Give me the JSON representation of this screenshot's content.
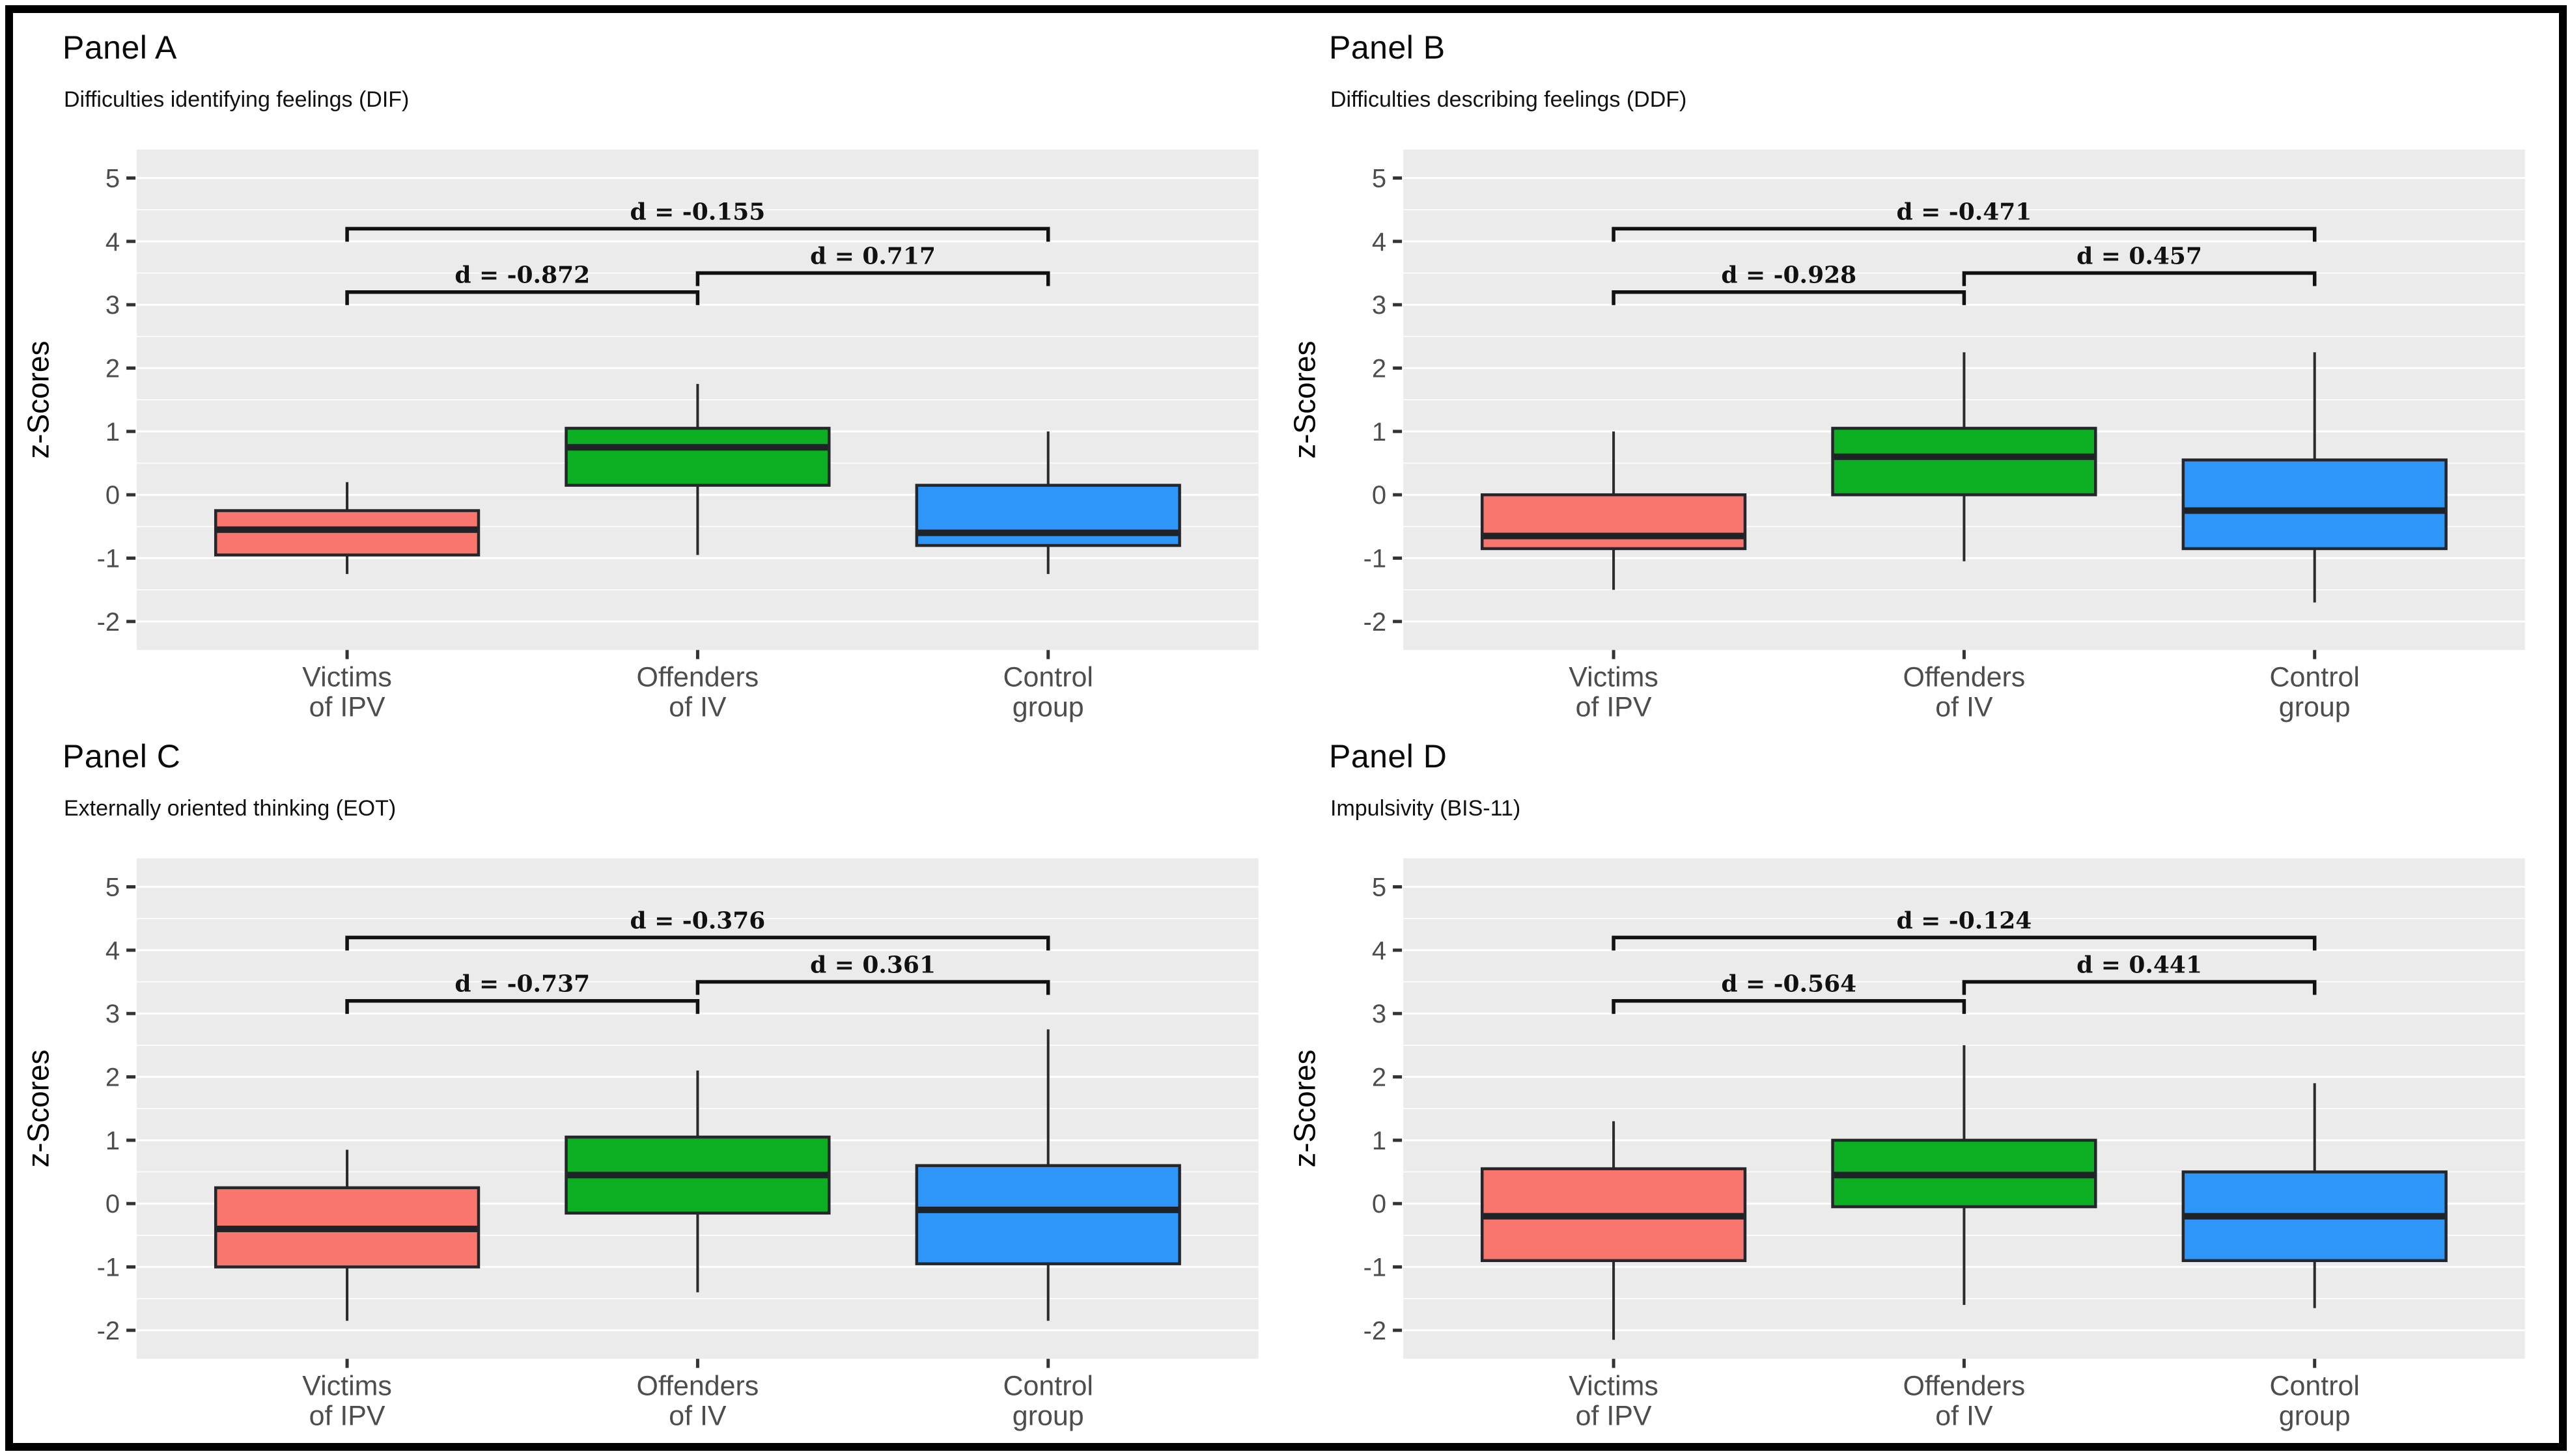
{
  "figure": {
    "y_axis_label": "z-Scores",
    "y_ticks": [
      5,
      4,
      3,
      2,
      1,
      0,
      -1,
      -2
    ],
    "ylim": [
      -2.45,
      5.45
    ],
    "x_categories": [
      [
        "Victims",
        "of IPV"
      ],
      [
        "Offenders",
        "of IV"
      ],
      [
        "Control",
        "group"
      ]
    ],
    "colors": {
      "victims": "#F8766D",
      "offenders": "#0CAE22",
      "control": "#2E96F8",
      "panel_bg": "#EBEBEB",
      "grid": "#FFFFFF",
      "axis_text": "#4D4D4D",
      "box_border": "#23262B",
      "bracket": "#111111",
      "outer_border": "#000000"
    }
  },
  "chart_data": [
    {
      "type": "boxplot",
      "panel_label": "Panel A",
      "subtitle": "Difficulties identifying feelings (DIF)",
      "ylabel": "z-Scores",
      "ylim": [
        -2.45,
        5.45
      ],
      "categories": [
        "Victims of IPV",
        "Offenders of IV",
        "Control group"
      ],
      "groups": [
        {
          "name": "Victims of IPV",
          "color": "victims",
          "whisker_low": -1.25,
          "q1": -0.95,
          "median": -0.55,
          "q3": -0.25,
          "whisker_high": 0.2
        },
        {
          "name": "Offenders of IV",
          "color": "offenders",
          "whisker_low": -0.95,
          "q1": 0.15,
          "median": 0.75,
          "q3": 1.05,
          "whisker_high": 1.75
        },
        {
          "name": "Control group",
          "color": "control",
          "whisker_low": -1.25,
          "q1": -0.8,
          "median": -0.6,
          "q3": 0.15,
          "whisker_high": 1.0
        }
      ],
      "comparisons": [
        {
          "from": 0,
          "to": 1,
          "label": "d = -0.872",
          "bar_y": 3.2
        },
        {
          "from": 1,
          "to": 2,
          "label": "d = 0.717",
          "bar_y": 3.5
        },
        {
          "from": 0,
          "to": 2,
          "label": "d = -0.155",
          "bar_y": 4.2
        }
      ]
    },
    {
      "type": "boxplot",
      "panel_label": "Panel B",
      "subtitle": "Difficulties describing feelings (DDF)",
      "ylabel": "z-Scores",
      "ylim": [
        -2.45,
        5.45
      ],
      "categories": [
        "Victims of IPV",
        "Offenders of IV",
        "Control group"
      ],
      "groups": [
        {
          "name": "Victims of IPV",
          "color": "victims",
          "whisker_low": -1.5,
          "q1": -0.85,
          "median": -0.65,
          "q3": 0.0,
          "whisker_high": 1.0
        },
        {
          "name": "Offenders of IV",
          "color": "offenders",
          "whisker_low": -1.05,
          "q1": 0.0,
          "median": 0.6,
          "q3": 1.05,
          "whisker_high": 2.25
        },
        {
          "name": "Control group",
          "color": "control",
          "whisker_low": -1.7,
          "q1": -0.85,
          "median": -0.25,
          "q3": 0.55,
          "whisker_high": 2.25
        }
      ],
      "comparisons": [
        {
          "from": 0,
          "to": 1,
          "label": "d = -0.928",
          "bar_y": 3.2
        },
        {
          "from": 1,
          "to": 2,
          "label": "d = 0.457",
          "bar_y": 3.5
        },
        {
          "from": 0,
          "to": 2,
          "label": "d = -0.471",
          "bar_y": 4.2
        }
      ]
    },
    {
      "type": "boxplot",
      "panel_label": "Panel C",
      "subtitle": "Externally oriented thinking (EOT)",
      "ylabel": "z-Scores",
      "ylim": [
        -2.45,
        5.45
      ],
      "categories": [
        "Victims of IPV",
        "Offenders of IV",
        "Control group"
      ],
      "groups": [
        {
          "name": "Victims of IPV",
          "color": "victims",
          "whisker_low": -1.85,
          "q1": -1.0,
          "median": -0.4,
          "q3": 0.25,
          "whisker_high": 0.85
        },
        {
          "name": "Offenders of IV",
          "color": "offenders",
          "whisker_low": -1.4,
          "q1": -0.15,
          "median": 0.45,
          "q3": 1.05,
          "whisker_high": 2.1
        },
        {
          "name": "Control group",
          "color": "control",
          "whisker_low": -1.85,
          "q1": -0.95,
          "median": -0.1,
          "q3": 0.6,
          "whisker_high": 2.75
        }
      ],
      "comparisons": [
        {
          "from": 0,
          "to": 1,
          "label": "d = -0.737",
          "bar_y": 3.2
        },
        {
          "from": 1,
          "to": 2,
          "label": "d = 0.361",
          "bar_y": 3.5
        },
        {
          "from": 0,
          "to": 2,
          "label": "d = -0.376",
          "bar_y": 4.2
        }
      ]
    },
    {
      "type": "boxplot",
      "panel_label": "Panel D",
      "subtitle": "Impulsivity (BIS-11)",
      "ylabel": "z-Scores",
      "ylim": [
        -2.45,
        5.45
      ],
      "categories": [
        "Victims of IPV",
        "Offenders of IV",
        "Control group"
      ],
      "groups": [
        {
          "name": "Victims of IPV",
          "color": "victims",
          "whisker_low": -2.15,
          "q1": -0.9,
          "median": -0.2,
          "q3": 0.55,
          "whisker_high": 1.3
        },
        {
          "name": "Offenders of IV",
          "color": "offenders",
          "whisker_low": -1.6,
          "q1": -0.05,
          "median": 0.45,
          "q3": 1.0,
          "whisker_high": 2.5
        },
        {
          "name": "Control group",
          "color": "control",
          "whisker_low": -1.65,
          "q1": -0.9,
          "median": -0.2,
          "q3": 0.5,
          "whisker_high": 1.9
        }
      ],
      "comparisons": [
        {
          "from": 0,
          "to": 1,
          "label": "d = -0.564",
          "bar_y": 3.2
        },
        {
          "from": 1,
          "to": 2,
          "label": "d = 0.441",
          "bar_y": 3.5
        },
        {
          "from": 0,
          "to": 2,
          "label": "d = -0.124",
          "bar_y": 4.2
        }
      ]
    }
  ]
}
